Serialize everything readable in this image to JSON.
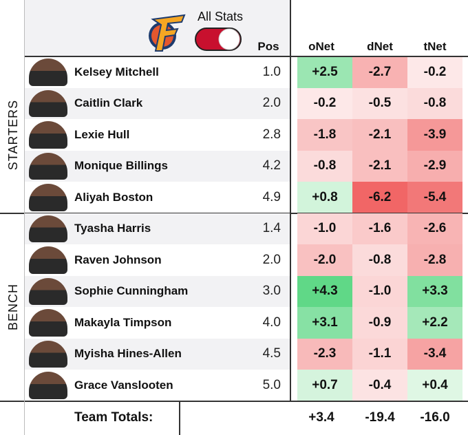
{
  "header": {
    "title": "All Stats",
    "columns": [
      "Pos",
      "oNet",
      "dNet",
      "tNet"
    ]
  },
  "groups": [
    {
      "label": "STARTERS",
      "rows": [
        [
          "Kelsey Mitchell",
          "1.0",
          "+2.5",
          "-2.7",
          "-0.2"
        ],
        [
          "Caitlin Clark",
          "2.0",
          "-0.2",
          "-0.5",
          "-0.8"
        ],
        [
          "Lexie Hull",
          "2.8",
          "-1.8",
          "-2.1",
          "-3.9"
        ],
        [
          "Monique Billings",
          "4.2",
          "-0.8",
          "-2.1",
          "-2.9"
        ],
        [
          "Aliyah Boston",
          "4.9",
          "+0.8",
          "-6.2",
          "-5.4"
        ]
      ]
    },
    {
      "label": "BENCH",
      "rows": [
        [
          "Tyasha Harris",
          "1.4",
          "-1.0",
          "-1.6",
          "-2.6"
        ],
        [
          "Raven Johnson",
          "2.0",
          "-2.0",
          "-0.8",
          "-2.8"
        ],
        [
          "Sophie Cunningham",
          "3.0",
          "+4.3",
          "-1.0",
          "+3.3"
        ],
        [
          "Makayla Timpson",
          "4.0",
          "+3.1",
          "-0.9",
          "+2.2"
        ],
        [
          "Myisha Hines-Allen",
          "4.5",
          "-2.3",
          "-1.1",
          "-3.4"
        ],
        [
          "Grace Vanslooten",
          "5.0",
          "+0.7",
          "-0.4",
          "+0.4"
        ]
      ]
    }
  ],
  "totals": {
    "label": "Team Totals:",
    "values": [
      "+3.4",
      "-19.4",
      "-16.0"
    ]
  }
}
